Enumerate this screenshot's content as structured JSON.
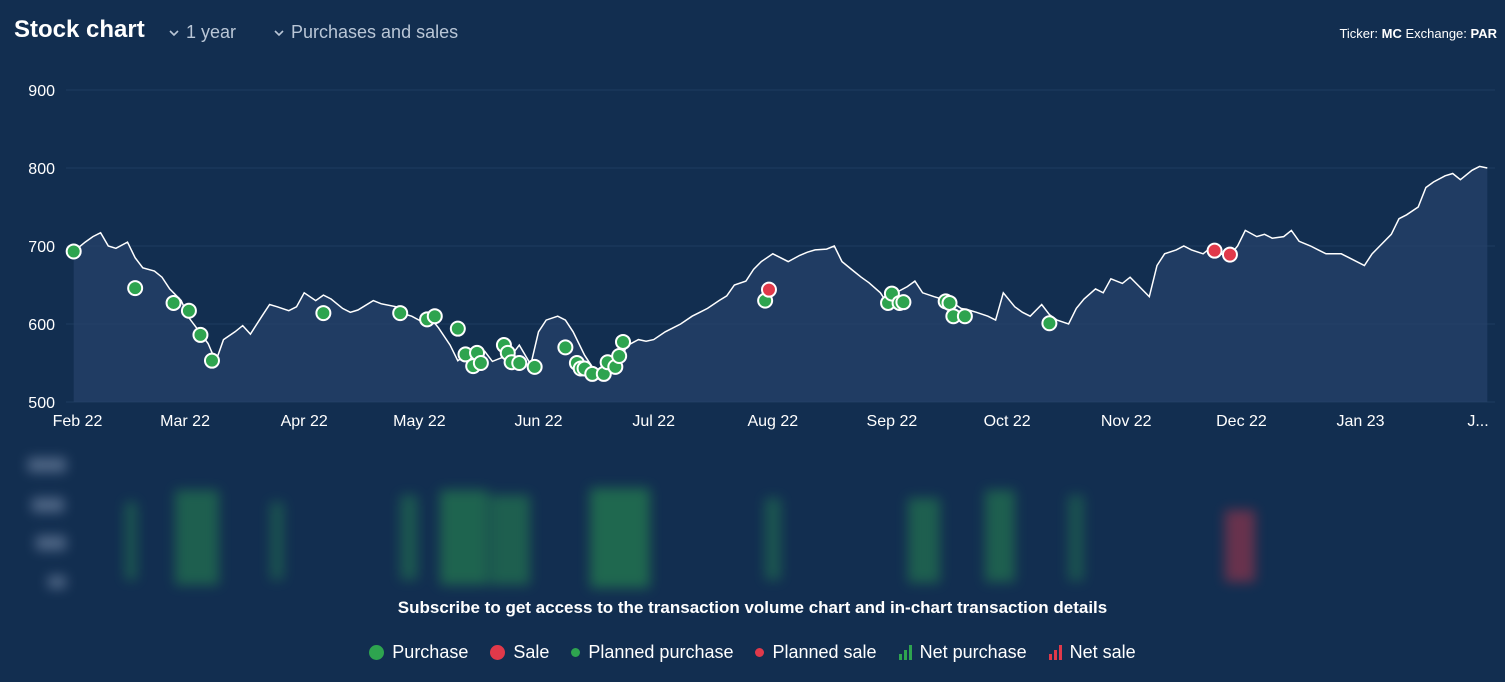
{
  "header": {
    "title": "Stock chart",
    "period_label": "1 year",
    "filter_label": "Purchases and sales",
    "ticker_label": "Ticker:",
    "ticker_value": "MC",
    "exchange_label": "Exchange:",
    "exchange_value": "PAR"
  },
  "subscribe_text": "Subscribe to get access to the transaction volume chart and in-chart transaction details",
  "legend": {
    "purchase": "Purchase",
    "sale": "Sale",
    "planned_purchase": "Planned purchase",
    "planned_sale": "Planned sale",
    "net_purchase": "Net purchase",
    "net_sale": "Net sale"
  },
  "colors": {
    "background": "#122e50",
    "line": "#ffffff",
    "purchase": "#2ea44f",
    "sale": "#e0394a",
    "grid": "#1f3c5f"
  },
  "chart_data": {
    "type": "line",
    "title": "",
    "xlabel": "",
    "ylabel": "",
    "ylim": [
      500,
      900
    ],
    "yticks": [
      500,
      600,
      700,
      800,
      900
    ],
    "xlim": [
      "2022-01-29",
      "2023-02-05"
    ],
    "xticks": [
      {
        "date": "2022-02-01",
        "label": "Feb 22"
      },
      {
        "date": "2022-03-01",
        "label": "Mar 22"
      },
      {
        "date": "2022-04-01",
        "label": "Apr 22"
      },
      {
        "date": "2022-05-01",
        "label": "May 22"
      },
      {
        "date": "2022-06-01",
        "label": "Jun 22"
      },
      {
        "date": "2022-07-01",
        "label": "Jul 22"
      },
      {
        "date": "2022-08-01",
        "label": "Aug 22"
      },
      {
        "date": "2022-09-01",
        "label": "Sep 22"
      },
      {
        "date": "2022-10-01",
        "label": "Oct 22"
      },
      {
        "date": "2022-11-01",
        "label": "Nov 22"
      },
      {
        "date": "2022-12-01",
        "label": "Dec 22"
      },
      {
        "date": "2023-01-01",
        "label": "Jan 23"
      },
      {
        "date": "2023-02-01",
        "label": "J..."
      }
    ],
    "grid": true,
    "series": [
      {
        "type": "line",
        "x": [
          "2022-01-31",
          "2022-02-03",
          "2022-02-05",
          "2022-02-07",
          "2022-02-09",
          "2022-02-11",
          "2022-02-14",
          "2022-02-16",
          "2022-02-18",
          "2022-02-21",
          "2022-02-23",
          "2022-02-25",
          "2022-02-28",
          "2022-03-02",
          "2022-03-04",
          "2022-03-07",
          "2022-03-09",
          "2022-03-11",
          "2022-03-14",
          "2022-03-16",
          "2022-03-18",
          "2022-03-21",
          "2022-03-23",
          "2022-03-25",
          "2022-03-28",
          "2022-03-30",
          "2022-04-01",
          "2022-04-04",
          "2022-04-06",
          "2022-04-08",
          "2022-04-11",
          "2022-04-13",
          "2022-04-15",
          "2022-04-19",
          "2022-04-21",
          "2022-04-25",
          "2022-04-27",
          "2022-04-29",
          "2022-05-02",
          "2022-05-04",
          "2022-05-06",
          "2022-05-09",
          "2022-05-11",
          "2022-05-13",
          "2022-05-16",
          "2022-05-18",
          "2022-05-20",
          "2022-05-23",
          "2022-05-25",
          "2022-05-27",
          "2022-05-30",
          "2022-06-01",
          "2022-06-03",
          "2022-06-06",
          "2022-06-08",
          "2022-06-10",
          "2022-06-13",
          "2022-06-15",
          "2022-06-17",
          "2022-06-20",
          "2022-06-22",
          "2022-06-24",
          "2022-06-27",
          "2022-06-29",
          "2022-07-01",
          "2022-07-04",
          "2022-07-06",
          "2022-07-08",
          "2022-07-11",
          "2022-07-13",
          "2022-07-15",
          "2022-07-18",
          "2022-07-20",
          "2022-07-22",
          "2022-07-25",
          "2022-07-27",
          "2022-07-29",
          "2022-08-01",
          "2022-08-03",
          "2022-08-05",
          "2022-08-08",
          "2022-08-10",
          "2022-08-12",
          "2022-08-15",
          "2022-08-17",
          "2022-08-19",
          "2022-08-22",
          "2022-08-24",
          "2022-08-26",
          "2022-08-29",
          "2022-08-31",
          "2022-09-02",
          "2022-09-05",
          "2022-09-07",
          "2022-09-09",
          "2022-09-12",
          "2022-09-14",
          "2022-09-16",
          "2022-09-19",
          "2022-09-21",
          "2022-09-23",
          "2022-09-26",
          "2022-09-28",
          "2022-09-30",
          "2022-10-03",
          "2022-10-05",
          "2022-10-07",
          "2022-10-10",
          "2022-10-12",
          "2022-10-14",
          "2022-10-17",
          "2022-10-19",
          "2022-10-21",
          "2022-10-24",
          "2022-10-26",
          "2022-10-28",
          "2022-10-31",
          "2022-11-02",
          "2022-11-04",
          "2022-11-07",
          "2022-11-09",
          "2022-11-11",
          "2022-11-14",
          "2022-11-16",
          "2022-11-18",
          "2022-11-21",
          "2022-11-23",
          "2022-11-25",
          "2022-11-28",
          "2022-11-30",
          "2022-12-02",
          "2022-12-05",
          "2022-12-07",
          "2022-12-09",
          "2022-12-12",
          "2022-12-14",
          "2022-12-16",
          "2022-12-19",
          "2022-12-21",
          "2022-12-23",
          "2022-12-27",
          "2022-12-29",
          "2023-01-02",
          "2023-01-04",
          "2023-01-06",
          "2023-01-09",
          "2023-01-11",
          "2023-01-13",
          "2023-01-16",
          "2023-01-18",
          "2023-01-20",
          "2023-01-23",
          "2023-01-25",
          "2023-01-27",
          "2023-01-30",
          "2023-02-01",
          "2023-02-03"
        ],
        "values": [
          693,
          705,
          712,
          717,
          700,
          697,
          705,
          685,
          672,
          668,
          660,
          645,
          630,
          608,
          595,
          575,
          552,
          580,
          590,
          598,
          587,
          610,
          625,
          622,
          617,
          622,
          640,
          630,
          637,
          632,
          620,
          615,
          618,
          630,
          626,
          622,
          613,
          610,
          602,
          607,
          595,
          573,
          553,
          560,
          568,
          565,
          552,
          558,
          560,
          573,
          548,
          590,
          605,
          610,
          605,
          590,
          560,
          545,
          540,
          538,
          550,
          572,
          580,
          578,
          580,
          590,
          595,
          600,
          610,
          615,
          620,
          630,
          636,
          650,
          655,
          670,
          680,
          690,
          685,
          680,
          688,
          692,
          695,
          696,
          700,
          680,
          668,
          660,
          653,
          640,
          625,
          640,
          648,
          655,
          640,
          635,
          632,
          630,
          620,
          618,
          615,
          610,
          605,
          640,
          622,
          615,
          610,
          625,
          612,
          605,
          600,
          620,
          632,
          645,
          640,
          658,
          652,
          660,
          650,
          635,
          675,
          690,
          695,
          700,
          695,
          690,
          698,
          690,
          688,
          700,
          720,
          712,
          715,
          710,
          712,
          720,
          706,
          700,
          695,
          690,
          690,
          685,
          675,
          690,
          700,
          715,
          735,
          740,
          750,
          775,
          782,
          790,
          793,
          785,
          797,
          802,
          800
        ]
      }
    ],
    "purchases": [
      {
        "x": "2022-01-31",
        "y": 693
      },
      {
        "x": "2022-02-16",
        "y": 646
      },
      {
        "x": "2022-02-26",
        "y": 627
      },
      {
        "x": "2022-03-02",
        "y": 617
      },
      {
        "x": "2022-03-05",
        "y": 586
      },
      {
        "x": "2022-03-08",
        "y": 553
      },
      {
        "x": "2022-04-06",
        "y": 614
      },
      {
        "x": "2022-04-26",
        "y": 614
      },
      {
        "x": "2022-05-03",
        "y": 606
      },
      {
        "x": "2022-05-05",
        "y": 610
      },
      {
        "x": "2022-05-11",
        "y": 594
      },
      {
        "x": "2022-05-13",
        "y": 561
      },
      {
        "x": "2022-05-15",
        "y": 546
      },
      {
        "x": "2022-05-16",
        "y": 563
      },
      {
        "x": "2022-05-17",
        "y": 550
      },
      {
        "x": "2022-05-23",
        "y": 573
      },
      {
        "x": "2022-05-24",
        "y": 563
      },
      {
        "x": "2022-05-25",
        "y": 551
      },
      {
        "x": "2022-05-27",
        "y": 550
      },
      {
        "x": "2022-05-31",
        "y": 545
      },
      {
        "x": "2022-06-08",
        "y": 570
      },
      {
        "x": "2022-06-11",
        "y": 550
      },
      {
        "x": "2022-06-12",
        "y": 543
      },
      {
        "x": "2022-06-13",
        "y": 543
      },
      {
        "x": "2022-06-15",
        "y": 536
      },
      {
        "x": "2022-06-18",
        "y": 536
      },
      {
        "x": "2022-06-19",
        "y": 551
      },
      {
        "x": "2022-06-21",
        "y": 545
      },
      {
        "x": "2022-06-22",
        "y": 559
      },
      {
        "x": "2022-06-23",
        "y": 577
      },
      {
        "x": "2022-07-30",
        "y": 630
      },
      {
        "x": "2022-08-31",
        "y": 627
      },
      {
        "x": "2022-09-01",
        "y": 639
      },
      {
        "x": "2022-09-03",
        "y": 627
      },
      {
        "x": "2022-09-04",
        "y": 628
      },
      {
        "x": "2022-09-15",
        "y": 629
      },
      {
        "x": "2022-09-16",
        "y": 627
      },
      {
        "x": "2022-09-17",
        "y": 610
      },
      {
        "x": "2022-09-20",
        "y": 610
      },
      {
        "x": "2022-10-12",
        "y": 601
      }
    ],
    "sales": [
      {
        "x": "2022-07-31",
        "y": 644
      },
      {
        "x": "2022-11-24",
        "y": 694
      },
      {
        "x": "2022-11-28",
        "y": 689
      }
    ]
  }
}
